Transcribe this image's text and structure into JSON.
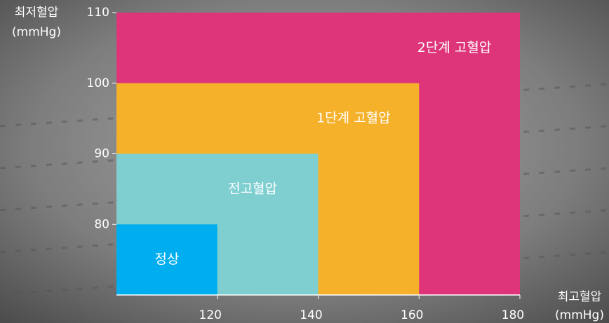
{
  "chart_data": {
    "type": "region",
    "series": [
      {
        "name": "정상",
        "color": "#00aeef",
        "x": 120,
        "y": 80
      },
      {
        "name": "전고혈압",
        "color": "#7fcfd1",
        "x": 140,
        "y": 90
      },
      {
        "name": "1단계 고혈압",
        "color": "#f5b12a",
        "x": 160,
        "y": 100
      },
      {
        "name": "2단계 고혈압",
        "color": "#de3479",
        "x": 180,
        "y": 110
      }
    ],
    "xlim": [
      100,
      180
    ],
    "ylim": [
      70,
      110
    ],
    "xticks": [
      120,
      140,
      160,
      180
    ],
    "yticks": [
      80,
      90,
      100,
      110
    ],
    "x_label": [
      "최고혈압",
      "(mmHg)"
    ],
    "y_label": [
      "최저혈압",
      "(mmHg)"
    ]
  }
}
